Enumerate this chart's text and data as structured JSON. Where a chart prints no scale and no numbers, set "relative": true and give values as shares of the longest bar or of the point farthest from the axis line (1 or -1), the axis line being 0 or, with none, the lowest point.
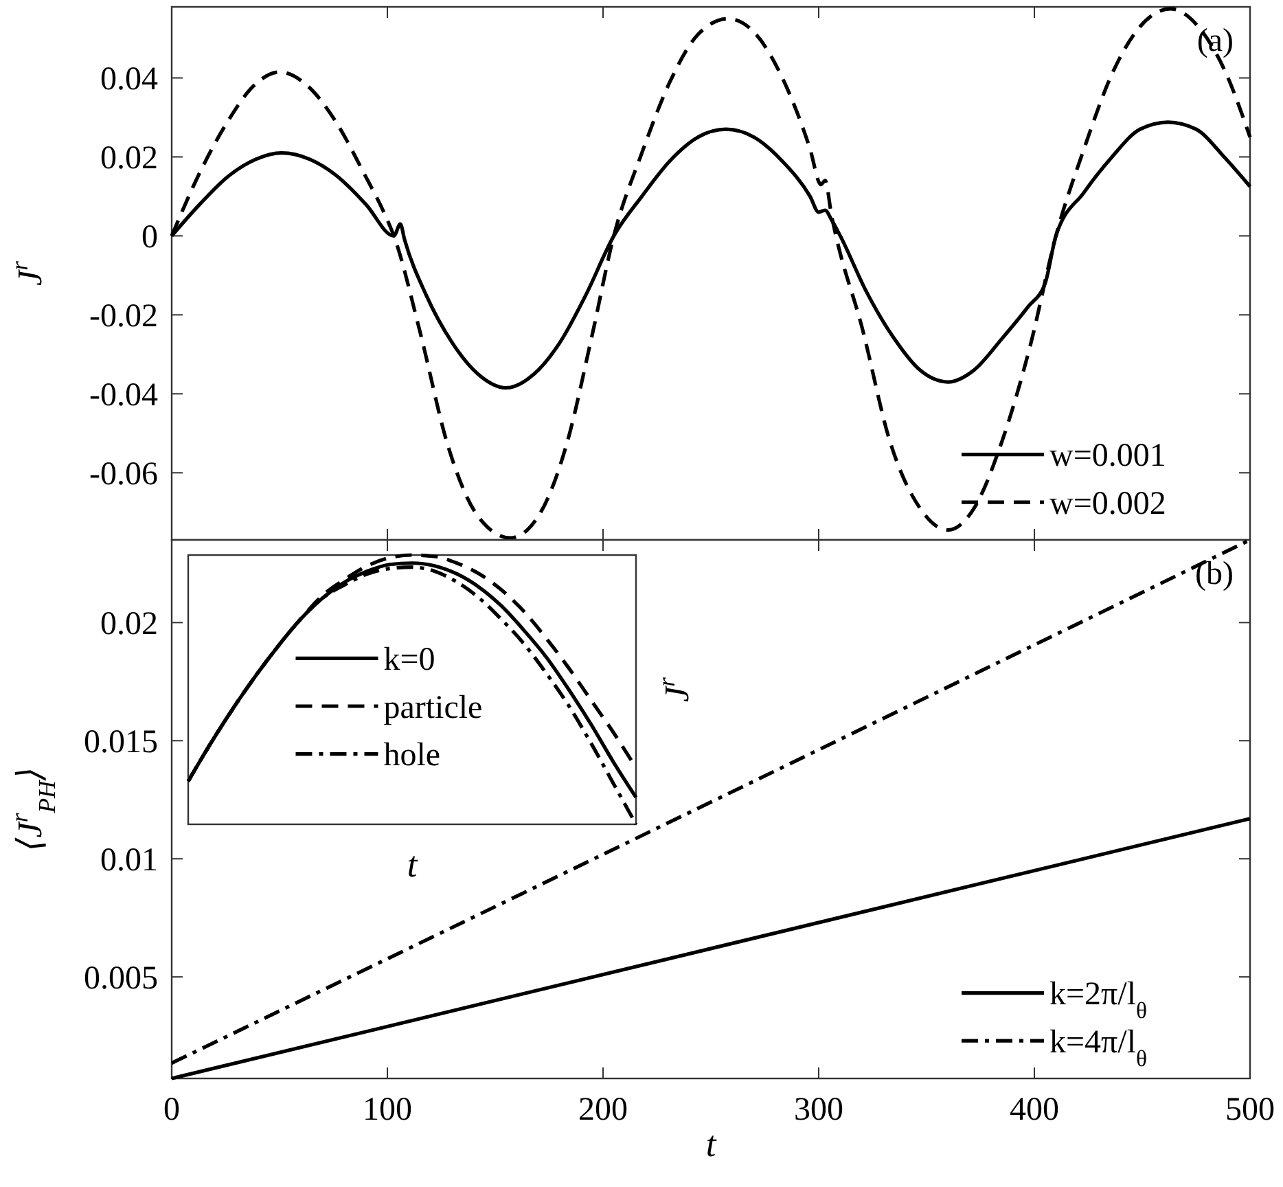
{
  "chart_data": [
    {
      "type": "line",
      "ylabel": "J$^{r}$",
      "annotations": [
        "(a)"
      ],
      "xlim": [
        0,
        500
      ],
      "xticks": [
        {
          "value": 0,
          "label": null
        },
        {
          "value": 100,
          "label": null
        },
        {
          "value": 200,
          "label": null
        },
        {
          "value": 300,
          "label": null
        },
        {
          "value": 400,
          "label": null
        },
        {
          "value": 500,
          "label": null
        }
      ],
      "ylim": [
        -0.077,
        0.058
      ],
      "yticks": [
        -0.06,
        -0.04,
        -0.02,
        0,
        0.02,
        0.04
      ],
      "tick_labels": "y",
      "legend": "bottom right",
      "grid": false,
      "series": [
        {
          "name": "w=0.001",
          "color": "#000000",
          "line_style": "solid",
          "x": [
            0,
            13,
            26,
            39,
            51,
            64,
            77,
            90,
            103,
            106,
            108,
            118,
            130,
            142,
            155,
            168,
            180,
            192,
            205,
            218,
            231,
            244,
            257,
            270,
            283,
            296,
            300,
            303,
            306,
            310,
            322,
            335,
            347,
            360,
            372,
            385,
            397,
            405,
            410,
            423,
            436,
            449,
            462,
            475,
            488,
            500
          ],
          "values": [
            0,
            0.008,
            0.015,
            0.0194,
            0.021,
            0.0194,
            0.015,
            0.008,
            0,
            0.003,
            -0.001,
            -0.015,
            -0.027,
            -0.035,
            -0.0385,
            -0.035,
            -0.027,
            -0.015,
            0,
            0.01,
            0.019,
            0.025,
            0.027,
            0.025,
            0.019,
            0.01,
            0.006,
            0.0065,
            0.004,
            0,
            -0.014,
            -0.026,
            -0.034,
            -0.037,
            -0.034,
            -0.026,
            -0.018,
            -0.012,
            0,
            0.011,
            0.02,
            0.027,
            0.0288,
            0.027,
            0.02,
            0.0125
          ]
        },
        {
          "name": "w=0.002",
          "color": "#000000",
          "line_style": "dashed",
          "x": [
            0,
            13,
            26,
            38,
            50,
            63,
            76,
            89,
            100,
            103,
            115,
            128,
            142,
            157,
            170,
            183,
            195,
            205,
            218,
            231,
            244,
            258,
            271,
            284,
            296,
            301,
            303,
            306,
            308,
            320,
            333,
            347,
            360,
            372,
            385,
            398,
            410,
            423,
            436,
            449,
            463,
            476,
            489,
            500
          ],
          "values": [
            0,
            0.016,
            0.029,
            0.038,
            0.0415,
            0.038,
            0.029,
            0.016,
            0.004,
            0,
            -0.024,
            -0.053,
            -0.071,
            -0.0765,
            -0.071,
            -0.053,
            -0.025,
            0,
            0.021,
            0.039,
            0.051,
            0.055,
            0.051,
            0.039,
            0.022,
            0.013,
            0.014,
            0.005,
            0,
            -0.023,
            -0.052,
            -0.069,
            -0.0745,
            -0.069,
            -0.052,
            -0.028,
            0,
            0.022,
            0.041,
            0.053,
            0.0575,
            0.053,
            0.041,
            0.025
          ]
        }
      ]
    },
    {
      "type": "line",
      "xlabel": "t",
      "ylabel": "⟨J$^{r}$$_{PH}$⟩",
      "annotations": [
        "(b)"
      ],
      "xlim": [
        0,
        500
      ],
      "xticks": [
        0,
        100,
        200,
        300,
        400,
        500
      ],
      "ylim": [
        0.0007,
        0.0235
      ],
      "yticks": [
        0.005,
        0.01,
        0.015,
        0.02
      ],
      "legend": "bottom right",
      "grid": false,
      "series": [
        {
          "name": "k=2π/l$_{θ}$",
          "color": "#000000",
          "line_style": "solid",
          "x": [
            0,
            250,
            500
          ],
          "values": [
            0.0007,
            0.0062,
            0.0117
          ]
        },
        {
          "name": "k=4π/l$_{θ}$",
          "color": "#000000",
          "line_style": "dashdot",
          "x": [
            0,
            250,
            500
          ],
          "values": [
            0.00135,
            0.0124,
            0.0235
          ]
        }
      ]
    },
    {
      "type": "line",
      "xlabel": "t",
      "ylabel": "J$^{r}$",
      "relative": true,
      "legend": "left",
      "categories": [
        null,
        null,
        null,
        null,
        null,
        null,
        null,
        null,
        null,
        null,
        null,
        null,
        null,
        null,
        null,
        null,
        null,
        null,
        null,
        null,
        null
      ],
      "series": [
        {
          "name": "k=0",
          "color": "#000000",
          "line_style": "solid",
          "values": [
            0.16,
            0.3,
            0.43,
            0.55,
            0.66,
            0.76,
            0.84,
            0.9,
            0.94,
            0.965,
            0.97,
            0.96,
            0.93,
            0.88,
            0.81,
            0.72,
            0.62,
            0.5,
            0.37,
            0.23,
            0.1
          ]
        },
        {
          "name": "particle",
          "color": "#000000",
          "line_style": "dashed",
          "values": [
            0.16,
            0.3,
            0.43,
            0.55,
            0.66,
            0.76,
            0.85,
            0.91,
            0.96,
            0.99,
            1,
            0.995,
            0.97,
            0.93,
            0.87,
            0.79,
            0.69,
            0.58,
            0.46,
            0.34,
            0.21
          ]
        },
        {
          "name": "hole",
          "color": "#000000",
          "line_style": "dashdot",
          "values": [
            0.16,
            0.3,
            0.43,
            0.55,
            0.66,
            0.76,
            0.84,
            0.89,
            0.93,
            0.95,
            0.955,
            0.94,
            0.9,
            0.84,
            0.76,
            0.67,
            0.56,
            0.44,
            0.3,
            0.15,
            0
          ]
        }
      ]
    }
  ]
}
